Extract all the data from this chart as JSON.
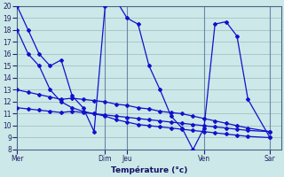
{
  "background_color": "#cce8e8",
  "grid_color": "#99bbbb",
  "line_color": "#1111cc",
  "xlabel": "Température (°c)",
  "ylim": [
    8,
    20
  ],
  "xlim": [
    0,
    24
  ],
  "ytick_step": 1,
  "day_labels": [
    "Mer",
    "Dim",
    "Jeu",
    "Ven",
    "Sar"
  ],
  "day_x": [
    0,
    8,
    10,
    17,
    23
  ],
  "series1_x": [
    0,
    1,
    2,
    3,
    4,
    5,
    6,
    7,
    8,
    9,
    10,
    11,
    12,
    13,
    14,
    15,
    16,
    17,
    18,
    19,
    20,
    21,
    23
  ],
  "series1_y": [
    20,
    18,
    16,
    15,
    15.5,
    12.5,
    11.5,
    9.5,
    20,
    20.5,
    19,
    18.5,
    15,
    13,
    10.8,
    9.8,
    8,
    9.8,
    18.5,
    18.7,
    17.5,
    12.2,
    9
  ],
  "series2_x": [
    0,
    1,
    2,
    3,
    4,
    5,
    6,
    7,
    8,
    9,
    10,
    11,
    12,
    13,
    14,
    15,
    16,
    17,
    18,
    19,
    20,
    21,
    23
  ],
  "series2_y": [
    18,
    16,
    15,
    13,
    12,
    11.5,
    11.2,
    11.0,
    10.8,
    10.5,
    10.3,
    10.1,
    10.0,
    9.9,
    9.8,
    9.7,
    9.6,
    9.5,
    9.4,
    9.3,
    9.2,
    9.1,
    9.0
  ],
  "series3_x": [
    0,
    1,
    2,
    3,
    4,
    5,
    6,
    7,
    8,
    9,
    10,
    11,
    12,
    13,
    14,
    15,
    16,
    17,
    18,
    19,
    20,
    21,
    23
  ],
  "series3_y": [
    13,
    12.8,
    12.6,
    12.4,
    12.2,
    12.3,
    12.2,
    12.1,
    12.0,
    11.8,
    11.7,
    11.5,
    11.4,
    11.2,
    11.1,
    11.0,
    10.8,
    10.6,
    10.4,
    10.2,
    10.0,
    9.8,
    9.5
  ],
  "series4_x": [
    0,
    1,
    2,
    3,
    4,
    5,
    6,
    7,
    8,
    9,
    10,
    11,
    12,
    13,
    14,
    15,
    16,
    17,
    18,
    19,
    20,
    21,
    23
  ],
  "series4_y": [
    11.5,
    11.4,
    11.3,
    11.2,
    11.1,
    11.2,
    11.1,
    11.0,
    10.9,
    10.8,
    10.7,
    10.6,
    10.5,
    10.4,
    10.3,
    10.2,
    10.1,
    10.0,
    9.9,
    9.8,
    9.7,
    9.6,
    9.5
  ]
}
